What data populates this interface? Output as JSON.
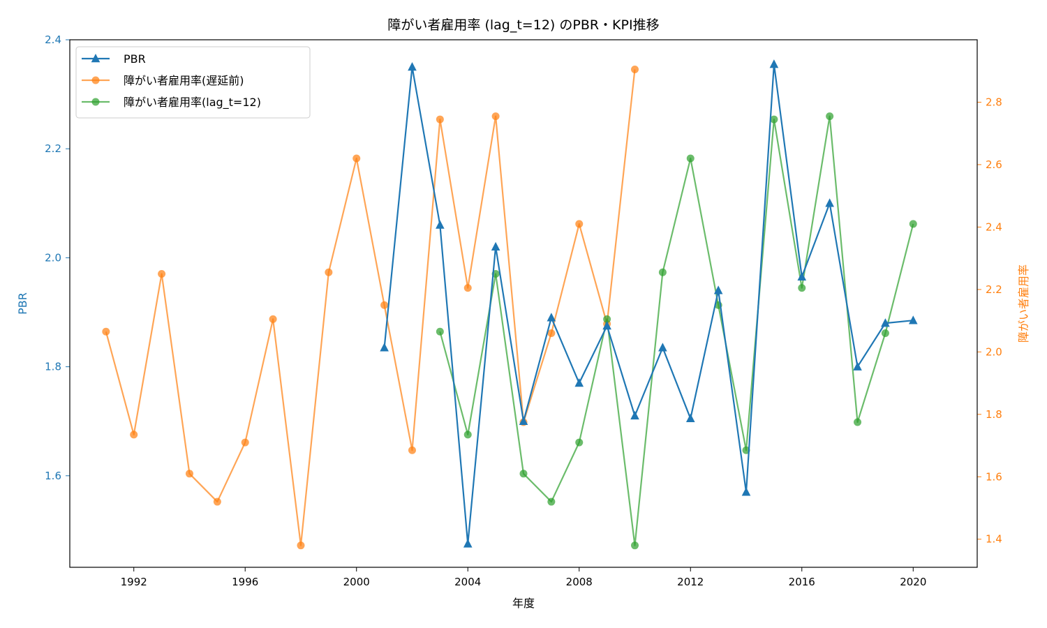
{
  "chart_data": {
    "type": "line",
    "title": "障がい者雇用率 (lag_t=12) のPBR・KPI推移",
    "xlabel": "年度",
    "ylabel_left": "PBR",
    "ylabel_right": "障がい者雇用率",
    "xlim": [
      1989.7,
      2022.3
    ],
    "ylim_left": [
      1.432,
      2.4
    ],
    "ylim_right": [
      1.31,
      3.0
    ],
    "x_ticks": [
      1992,
      1996,
      2000,
      2004,
      2008,
      2012,
      2016,
      2020
    ],
    "y_ticks_left": [
      1.6,
      1.8,
      2.0,
      2.2,
      2.4
    ],
    "y_ticks_right": [
      1.4,
      1.6,
      1.8,
      2.0,
      2.2,
      2.4,
      2.6,
      2.8
    ],
    "grid": false,
    "legend_position": "top-left",
    "colors": {
      "pbr": "#1f77b4",
      "kpi": "#ff7f0e",
      "lagged": "#2ca02c",
      "axis": "#000000"
    },
    "series": [
      {
        "name": "PBR",
        "axis": "left",
        "marker": "triangle",
        "color": "#1f77b4",
        "x": [
          2001,
          2002,
          2003,
          2004,
          2005,
          2006,
          2007,
          2008,
          2009,
          2010,
          2011,
          2012,
          2013,
          2014,
          2015,
          2016,
          2017,
          2018,
          2019,
          2020
        ],
        "values": [
          1.835,
          2.35,
          2.06,
          1.475,
          2.02,
          1.7,
          1.89,
          1.77,
          1.875,
          1.71,
          1.835,
          1.705,
          1.94,
          1.57,
          2.355,
          1.965,
          2.1,
          1.8,
          1.88,
          1.885
        ]
      },
      {
        "name": "障がい者雇用率(遅延前)",
        "axis": "right",
        "marker": "circle",
        "color": "#ff7f0e",
        "x": [
          1991,
          1992,
          1993,
          1994,
          1995,
          1996,
          1997,
          1998,
          1999,
          2000,
          2001,
          2002,
          2003,
          2004,
          2005,
          2006,
          2007,
          2008,
          2009,
          2010
        ],
        "values": [
          2.065,
          1.735,
          2.25,
          1.61,
          1.52,
          1.71,
          2.105,
          1.38,
          2.255,
          2.62,
          2.15,
          1.685,
          2.745,
          2.205,
          2.755,
          1.775,
          2.06,
          2.41,
          2.09,
          2.905
        ]
      },
      {
        "name": "障がい者雇用率(lag_t=12)",
        "axis": "right",
        "marker": "circle",
        "color": "#2ca02c",
        "x": [
          2003,
          2004,
          2005,
          2006,
          2007,
          2008,
          2009,
          2010,
          2011,
          2012,
          2013,
          2014,
          2015,
          2016,
          2017,
          2018,
          2019,
          2020
        ],
        "values": [
          2.065,
          1.735,
          2.25,
          1.61,
          1.52,
          1.71,
          2.105,
          1.38,
          2.255,
          2.62,
          2.15,
          1.685,
          2.745,
          2.205,
          2.755,
          1.775,
          2.06,
          2.41
        ]
      }
    ]
  }
}
